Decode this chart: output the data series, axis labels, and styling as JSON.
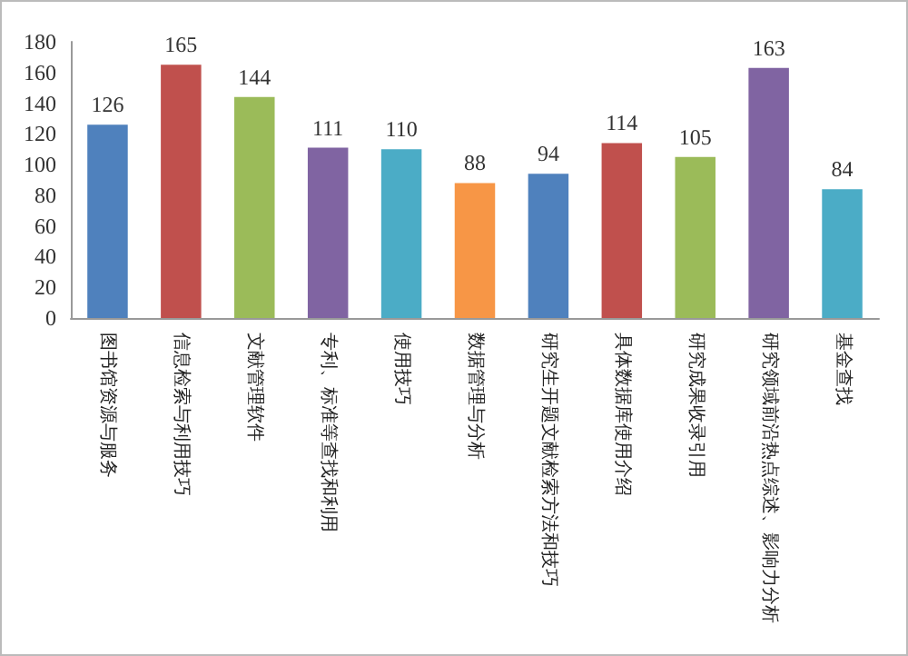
{
  "chart_data": {
    "type": "bar",
    "categories": [
      "图书馆资源与服务",
      "信息检索与利用技巧",
      "文献管理软件",
      "专利、标准等查找和利用",
      "使用技巧",
      "数据管理与分析",
      "研究生开题文献检索方法和技巧",
      "具体数据库使用介绍",
      "研究成果收录引用",
      "研究领域前沿热点综述、影响力分析",
      "基金查找"
    ],
    "values": [
      126,
      165,
      144,
      111,
      110,
      88,
      94,
      114,
      105,
      163,
      84
    ],
    "colors": [
      "#4f81bd",
      "#c0504d",
      "#9bbb59",
      "#8064a2",
      "#4bacc6",
      "#f79646",
      "#4f81bd",
      "#c0504d",
      "#9bbb59",
      "#8064a2",
      "#4bacc6"
    ],
    "ylim": [
      0,
      180
    ],
    "yticks": [
      0,
      20,
      40,
      60,
      80,
      100,
      120,
      140,
      160,
      180
    ],
    "data_labels": true,
    "grid": false
  }
}
